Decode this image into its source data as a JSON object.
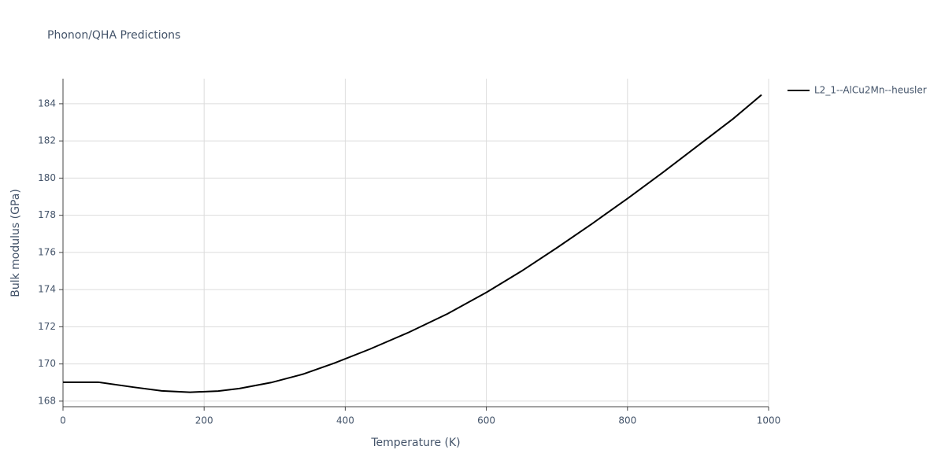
{
  "chart_data": {
    "type": "line",
    "title": "Phonon/QHA Predictions",
    "x_label": "Temperature (K)",
    "y_label": "Bulk modulus (GPa)",
    "x": [
      0,
      50,
      100,
      140,
      180,
      220,
      250,
      295,
      340,
      385,
      435,
      490,
      545,
      600,
      650,
      700,
      750,
      800,
      850,
      900,
      950,
      990
    ],
    "series": [
      {
        "name": "L2_1--AlCu2Mn--heusler",
        "color": "#000000",
        "values": [
          169.02,
          169.02,
          168.75,
          168.55,
          168.48,
          168.54,
          168.68,
          169.0,
          169.45,
          170.05,
          170.8,
          171.7,
          172.7,
          173.85,
          175.0,
          176.25,
          177.55,
          178.9,
          180.3,
          181.75,
          183.2,
          184.48
        ]
      }
    ],
    "xlim": [
      0,
      1000
    ],
    "xticks": [
      0,
      200,
      400,
      600,
      800,
      1000
    ],
    "ylim": [
      167.7,
      185.35
    ],
    "yticks": [
      168,
      170,
      172,
      174,
      176,
      178,
      180,
      182,
      184
    ],
    "grid": true,
    "legend": "right"
  }
}
